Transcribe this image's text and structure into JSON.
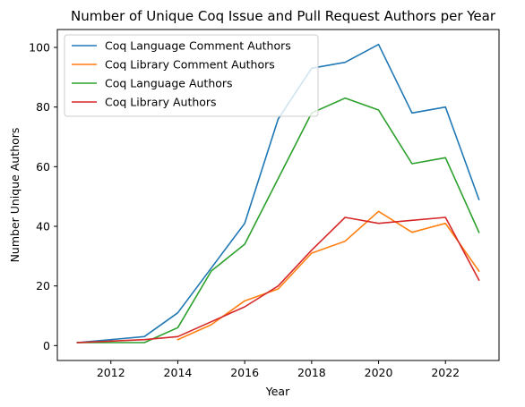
{
  "chart_data": {
    "type": "line",
    "title": "Number of Unique Coq Issue and Pull Request Authors per Year",
    "xlabel": "Year",
    "ylabel": "Number Unique Authors",
    "xlim": [
      2010.4,
      2023.6
    ],
    "ylim": [
      -5,
      106
    ],
    "xticks": [
      2012,
      2014,
      2016,
      2018,
      2020,
      2022
    ],
    "yticks": [
      0,
      20,
      40,
      60,
      80,
      100
    ],
    "grid": false,
    "legend_position": "top-left",
    "series": [
      {
        "name": "Coq Language Comment Authors",
        "color": "#1f77b4",
        "points": [
          [
            2011,
            1
          ],
          [
            2013,
            3
          ],
          [
            2014,
            11
          ],
          [
            2015,
            26
          ],
          [
            2016,
            41
          ],
          [
            2017,
            76
          ],
          [
            2018,
            93
          ],
          [
            2019,
            95
          ],
          [
            2020,
            101
          ],
          [
            2021,
            78
          ],
          [
            2022,
            80
          ],
          [
            2023,
            49
          ]
        ]
      },
      {
        "name": "Coq Library Comment Authors",
        "color": "#ff7f0e",
        "points": [
          [
            2014,
            2
          ],
          [
            2015,
            7
          ],
          [
            2016,
            15
          ],
          [
            2017,
            19
          ],
          [
            2018,
            31
          ],
          [
            2019,
            35
          ],
          [
            2020,
            45
          ],
          [
            2021,
            38
          ],
          [
            2022,
            41
          ],
          [
            2023,
            25
          ]
        ]
      },
      {
        "name": "Coq Language Authors",
        "color": "#2ca02c",
        "points": [
          [
            2011,
            1
          ],
          [
            2013,
            1
          ],
          [
            2014,
            6
          ],
          [
            2015,
            25
          ],
          [
            2016,
            34
          ],
          [
            2017,
            56
          ],
          [
            2018,
            78
          ],
          [
            2019,
            83
          ],
          [
            2020,
            79
          ],
          [
            2021,
            61
          ],
          [
            2022,
            63
          ],
          [
            2023,
            38
          ]
        ]
      },
      {
        "name": "Coq Library Authors",
        "color": "#d62728",
        "points": [
          [
            2011,
            1
          ],
          [
            2013,
            2
          ],
          [
            2014,
            3
          ],
          [
            2015,
            8
          ],
          [
            2016,
            13
          ],
          [
            2017,
            20
          ],
          [
            2018,
            32
          ],
          [
            2019,
            43
          ],
          [
            2020,
            41
          ],
          [
            2021,
            42
          ],
          [
            2022,
            43
          ],
          [
            2023,
            22
          ]
        ]
      }
    ]
  }
}
